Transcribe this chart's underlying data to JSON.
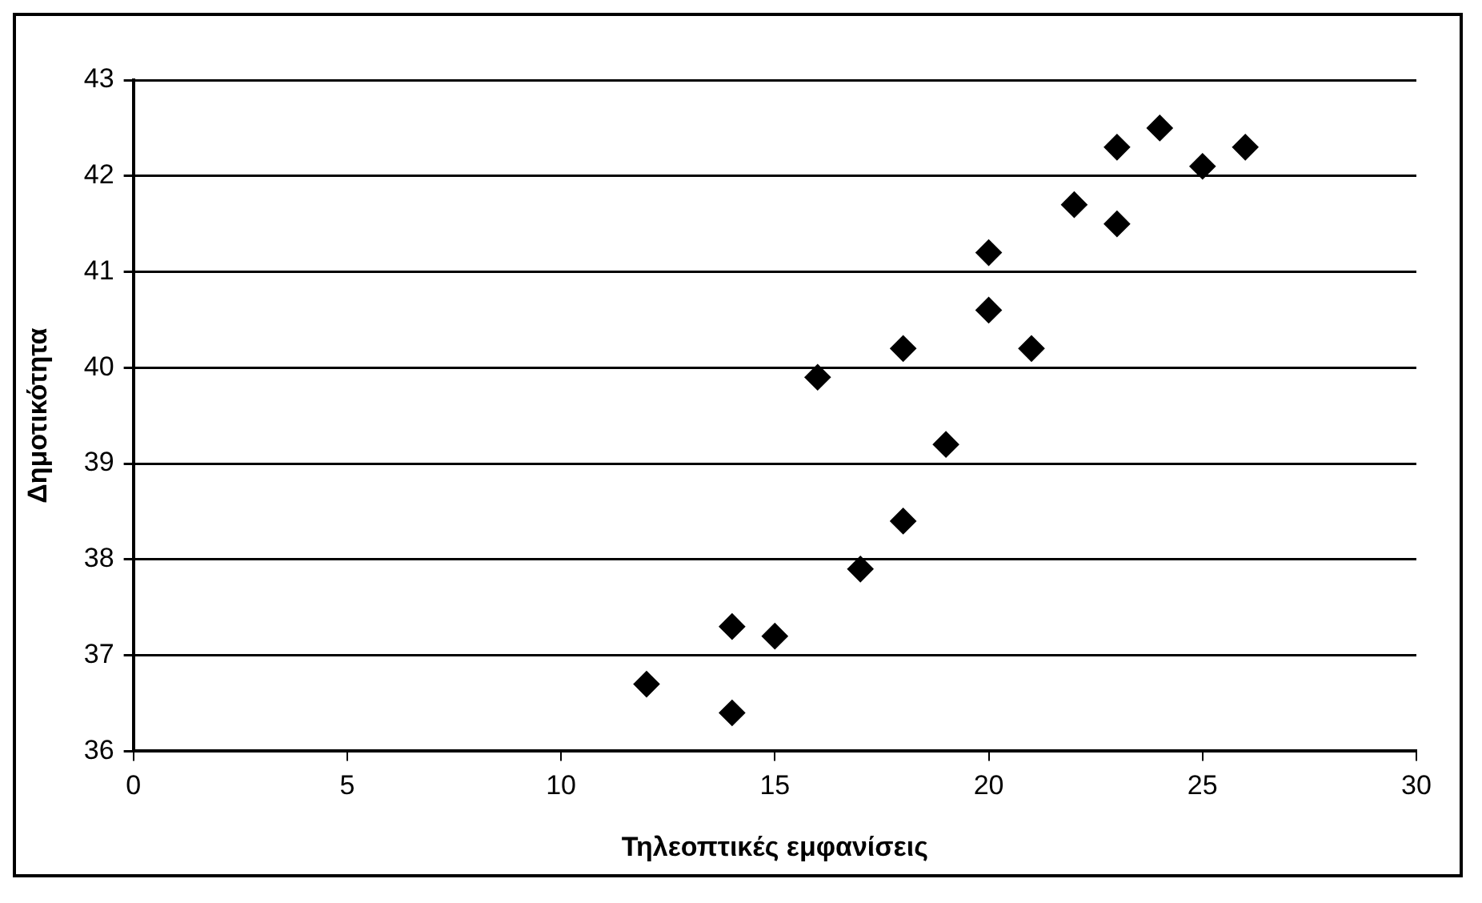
{
  "chart_data": {
    "type": "scatter",
    "xlabel": "Τηλεοπτικές εμφανίσεις",
    "ylabel": "Δημοτικότητα",
    "series": [
      {
        "color": "#000000",
        "x": [
          12,
          14,
          14,
          15,
          16,
          17,
          18,
          18,
          19,
          20,
          20,
          21,
          22,
          23,
          23,
          24,
          25,
          26
        ],
        "values": [
          36.7,
          37.3,
          36.4,
          37.2,
          39.9,
          37.9,
          38.4,
          40.2,
          39.2,
          40.6,
          41.2,
          40.2,
          41.7,
          41.5,
          42.3,
          42.5,
          42.1,
          42.3
        ]
      }
    ],
    "xlim": [
      0,
      30
    ],
    "xticks": [
      0,
      5,
      10,
      15,
      20,
      25,
      30
    ],
    "ylim": [
      36,
      43
    ],
    "yticks": [
      36,
      37,
      38,
      39,
      40,
      41,
      42,
      43
    ],
    "grid": "y",
    "legend": false,
    "marker": "diamond"
  }
}
